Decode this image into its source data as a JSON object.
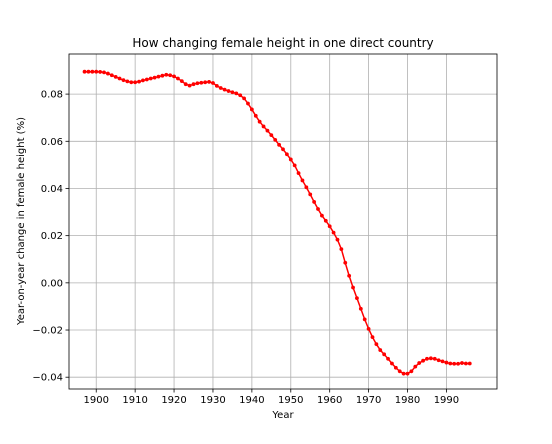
{
  "chart_data": {
    "type": "line",
    "title": "How changing female height in one direct country",
    "xlabel": "Year",
    "ylabel": "Year-on-year change in female height (%)",
    "xlim": [
      1893,
      2003
    ],
    "ylim": [
      -0.045,
      0.097
    ],
    "xticks": [
      1900,
      1910,
      1920,
      1930,
      1940,
      1950,
      1960,
      1970,
      1980,
      1990
    ],
    "yticks": [
      -0.04,
      -0.02,
      0.0,
      0.02,
      0.04,
      0.06,
      0.08
    ],
    "ytick_labels": [
      "−0.04",
      "−0.02",
      "0.00",
      "0.02",
      "0.04",
      "0.06",
      "0.08"
    ],
    "grid": true,
    "marker": "dot",
    "colors": {
      "series": "#ff0000"
    },
    "series": [
      {
        "x": [
          1897,
          1898,
          1899,
          1900,
          1901,
          1902,
          1903,
          1904,
          1905,
          1906,
          1907,
          1908,
          1909,
          1910,
          1911,
          1912,
          1913,
          1914,
          1915,
          1916,
          1917,
          1918,
          1919,
          1920,
          1921,
          1922,
          1923,
          1924,
          1925,
          1926,
          1927,
          1928,
          1929,
          1930,
          1931,
          1932,
          1933,
          1934,
          1935,
          1936,
          1937,
          1938,
          1939,
          1940,
          1941,
          1942,
          1943,
          1944,
          1945,
          1946,
          1947,
          1948,
          1949,
          1950,
          1951,
          1952,
          1953,
          1954,
          1955,
          1956,
          1957,
          1958,
          1959,
          1960,
          1961,
          1962,
          1963,
          1964,
          1965,
          1966,
          1967,
          1968,
          1969,
          1970,
          1971,
          1972,
          1973,
          1974,
          1975,
          1976,
          1977,
          1978,
          1979,
          1980,
          1981,
          1982,
          1983,
          1984,
          1985,
          1986,
          1987,
          1988,
          1989,
          1990,
          1991,
          1992,
          1993,
          1994,
          1995,
          1996
        ],
        "y": [
          0.0895,
          0.0895,
          0.0895,
          0.0895,
          0.0894,
          0.0892,
          0.0887,
          0.088,
          0.0873,
          0.0866,
          0.0859,
          0.0854,
          0.085,
          0.085,
          0.0853,
          0.0858,
          0.0862,
          0.0866,
          0.087,
          0.0874,
          0.0878,
          0.0882,
          0.088,
          0.0875,
          0.0866,
          0.0855,
          0.0842,
          0.0836,
          0.0842,
          0.0846,
          0.0848,
          0.085,
          0.0852,
          0.0847,
          0.0835,
          0.0826,
          0.0819,
          0.0813,
          0.0808,
          0.0803,
          0.0795,
          0.0782,
          0.076,
          0.0735,
          0.0708,
          0.0683,
          0.0663,
          0.0645,
          0.0626,
          0.0606,
          0.0585,
          0.0566,
          0.0545,
          0.0523,
          0.0498,
          0.0465,
          0.0434,
          0.0405,
          0.0375,
          0.0343,
          0.0313,
          0.0285,
          0.0263,
          0.024,
          0.0213,
          0.0183,
          0.0143,
          0.0085,
          0.003,
          -0.002,
          -0.0065,
          -0.011,
          -0.0155,
          -0.0195,
          -0.023,
          -0.026,
          -0.0285,
          -0.0303,
          -0.0322,
          -0.0342,
          -0.036,
          -0.0375,
          -0.0385,
          -0.0385,
          -0.0375,
          -0.0355,
          -0.034,
          -0.033,
          -0.0322,
          -0.032,
          -0.0322,
          -0.0328,
          -0.0333,
          -0.0338,
          -0.0342,
          -0.0343,
          -0.0343,
          -0.034,
          -0.0342,
          -0.0342
        ]
      }
    ]
  }
}
